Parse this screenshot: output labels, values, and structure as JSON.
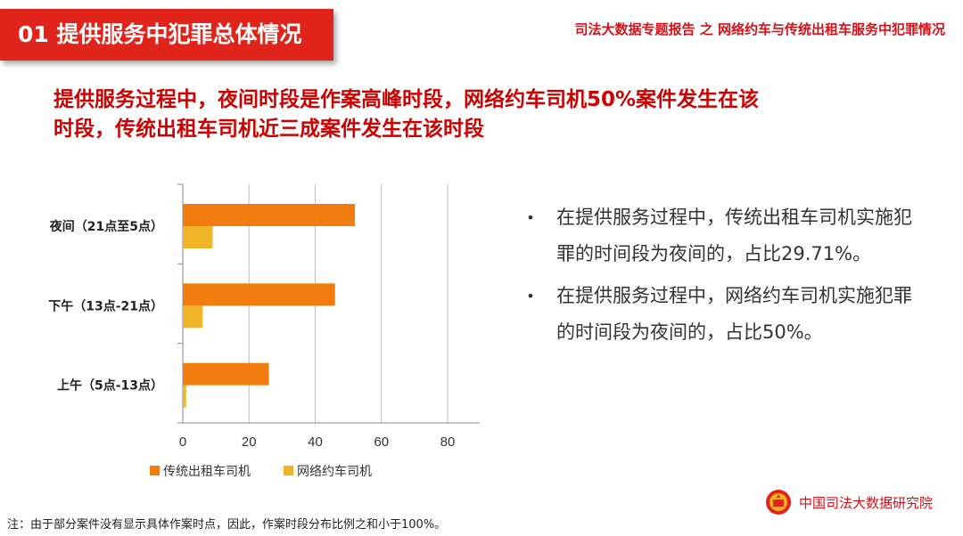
{
  "header": {
    "section_tag": "01 提供服务中犯罪总体情况",
    "report_title": "司法大数据专题报告 之 网络约车与传统出租车服务中犯罪情况"
  },
  "headline": {
    "line1": "提供服务过程中，夜间时段是作案高峰时段，网络约车司机50%案件发生在该",
    "line2": "时段，传统出租车司机近三成案件发生在该时段"
  },
  "chart_data": {
    "type": "bar",
    "orientation": "horizontal",
    "categories": [
      "夜间（21点至5点）",
      "下午（13点-21点）",
      "上午（5点-13点）"
    ],
    "series": [
      {
        "name": "传统出租车司机",
        "values": [
          52,
          46,
          26
        ],
        "color": "#f27c0f"
      },
      {
        "name": "网络约车司机",
        "values": [
          9,
          6,
          1
        ],
        "color": "#f0b429"
      }
    ],
    "xlim": [
      0,
      80
    ],
    "xticks": [
      0,
      20,
      40,
      60,
      80
    ],
    "grid": true,
    "legend_position": "bottom"
  },
  "bullets": [
    {
      "symbol": "•",
      "text": "在提供服务过程中，传统出租车司机实施犯罪的时间段为夜间的，占比29.71%。"
    },
    {
      "symbol": "•",
      "text": "在提供服务过程中，网络约车司机实施犯罪的时间段为夜间的，占比50%。"
    }
  ],
  "footnote": "注：由于部分案件没有显示具体作案时点，因此，作案时段分布比例之和小于100%。",
  "brand": {
    "name": "中国司法大数据研究院",
    "accent_color": "#d4121a"
  }
}
